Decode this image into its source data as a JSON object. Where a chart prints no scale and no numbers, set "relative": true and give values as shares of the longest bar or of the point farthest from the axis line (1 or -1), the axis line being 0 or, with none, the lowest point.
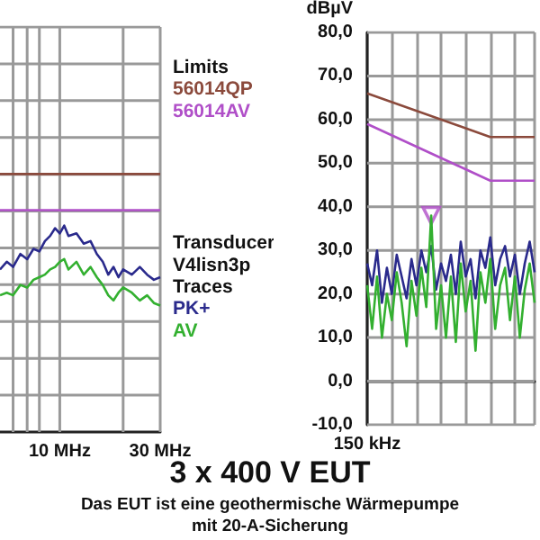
{
  "chart_data": [
    {
      "type": "line",
      "title": "3 x 400 V EUT",
      "subtitle": "Das EUT ist eine geothermische Wärmepumpe\nmit 20-A-Sicherung",
      "annotations": [
        "Limits",
        "Transducer",
        "V4lisn3p",
        "Traces"
      ],
      "log": "x",
      "grid": true,
      "legend": "right",
      "relative": true,
      "xlim": [
        5.2,
        30
      ],
      "xticks": [
        {
          "value": 6,
          "label": null
        },
        {
          "value": 7,
          "label": null
        },
        {
          "value": 8,
          "label": null
        },
        {
          "value": 10,
          "label": "10 MHz"
        },
        {
          "value": 20,
          "label": null
        },
        {
          "value": 30,
          "label": "30 MHz"
        }
      ],
      "series": [
        {
          "name": "56014QP",
          "color": "#8b4a3c",
          "x": [
            5.2,
            30
          ],
          "values": [
            1,
            1
          ]
        },
        {
          "name": "56014AV",
          "color": "#b04fc8",
          "x": [
            5.2,
            30
          ],
          "values": [
            0.86,
            0.86
          ]
        },
        {
          "name": "PK+",
          "color": "#2a2a8c",
          "x": [
            5.2,
            5.6,
            6,
            6.5,
            7,
            7.5,
            8,
            8.5,
            9,
            9.5,
            10,
            10.5,
            11,
            12,
            13,
            14,
            15,
            16,
            17,
            18,
            19,
            20,
            22,
            24,
            26,
            28,
            30
          ],
          "values": [
            0.63,
            0.66,
            0.64,
            0.69,
            0.67,
            0.71,
            0.7,
            0.74,
            0.76,
            0.79,
            0.77,
            0.8,
            0.76,
            0.77,
            0.73,
            0.74,
            0.69,
            0.66,
            0.61,
            0.64,
            0.6,
            0.63,
            0.61,
            0.64,
            0.61,
            0.59,
            0.6
          ]
        },
        {
          "name": "AV",
          "color": "#33b030",
          "x": [
            5.2,
            5.6,
            6,
            6.5,
            7,
            7.5,
            8,
            8.5,
            9,
            9.5,
            10,
            10.5,
            11,
            12,
            13,
            14,
            15,
            16,
            17,
            18,
            19,
            20,
            22,
            24,
            26,
            28,
            30
          ],
          "values": [
            0.53,
            0.54,
            0.53,
            0.57,
            0.56,
            0.59,
            0.6,
            0.61,
            0.63,
            0.64,
            0.66,
            0.67,
            0.63,
            0.66,
            0.61,
            0.64,
            0.6,
            0.57,
            0.53,
            0.51,
            0.54,
            0.56,
            0.54,
            0.51,
            0.53,
            0.5,
            0.49
          ]
        }
      ]
    },
    {
      "type": "line",
      "ylabel": "dBµV",
      "grid": true,
      "categories": [
        "150 kHz",
        null,
        null,
        null,
        null,
        null,
        null,
        null,
        null,
        null,
        null,
        null,
        null,
        null,
        null,
        null,
        null,
        null,
        null,
        null,
        null,
        null,
        null,
        null,
        null,
        null,
        null,
        null,
        null,
        null,
        null,
        null,
        null,
        null,
        null
      ],
      "ylim": [
        -10,
        80
      ],
      "yticks": [
        {
          "value": -10,
          "label": "-10,0"
        },
        {
          "value": 0,
          "label": "0,0"
        },
        {
          "value": 10,
          "label": "10,0"
        },
        {
          "value": 20,
          "label": "20,0"
        },
        {
          "value": 30,
          "label": "30,0"
        },
        {
          "value": 40,
          "label": "40,0"
        },
        {
          "value": 50,
          "label": "50,0"
        },
        {
          "value": 60,
          "label": "60,0"
        },
        {
          "value": 70,
          "label": "70,0"
        },
        {
          "value": 80,
          "label": "80,0"
        }
      ],
      "series": [
        {
          "color": "#8b4a3c",
          "values": [
            66,
            null,
            null,
            null,
            null,
            null,
            null,
            null,
            null,
            null,
            null,
            null,
            null,
            null,
            null,
            null,
            null,
            null,
            null,
            null,
            null,
            null,
            null,
            null,
            null,
            56,
            null,
            null,
            null,
            null,
            null,
            null,
            null,
            null,
            56
          ]
        },
        {
          "color": "#b04fc8",
          "values": [
            59,
            null,
            null,
            null,
            null,
            null,
            null,
            null,
            null,
            null,
            null,
            null,
            null,
            null,
            null,
            null,
            null,
            null,
            null,
            null,
            null,
            null,
            null,
            null,
            null,
            46,
            null,
            null,
            null,
            null,
            null,
            null,
            null,
            null,
            46
          ]
        },
        {
          "color": "#2a2a8c",
          "values": [
            27,
            22,
            30,
            18,
            26,
            20,
            29,
            24,
            19,
            28,
            22,
            30,
            25,
            31,
            21,
            27,
            23,
            29,
            20,
            32,
            24,
            28,
            19,
            30,
            26,
            33,
            22,
            28,
            31,
            24,
            29,
            20,
            27,
            32,
            25
          ]
        },
        {
          "color": "#33b030",
          "values": [
            22,
            12,
            24,
            10,
            20,
            14,
            25,
            18,
            8,
            23,
            15,
            26,
            17,
            38,
            12,
            22,
            10,
            24,
            9,
            27,
            16,
            23,
            7,
            25,
            18,
            28,
            12,
            22,
            26,
            14,
            24,
            10,
            21,
            27,
            18
          ]
        },
        {
          "type": "scatter",
          "marker": "triangle",
          "color": "#b04fc8",
          "values": [
            null,
            null,
            null,
            null,
            null,
            null,
            null,
            null,
            null,
            null,
            null,
            null,
            null,
            38,
            null,
            null,
            null,
            null,
            null,
            null,
            null,
            null,
            null,
            null,
            null,
            null,
            null,
            null,
            null,
            null,
            null,
            null,
            null,
            null,
            null
          ]
        }
      ]
    }
  ]
}
